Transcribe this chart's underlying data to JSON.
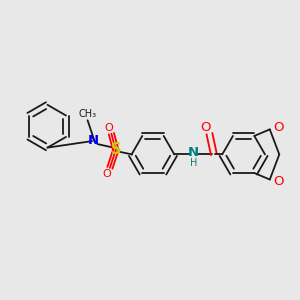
{
  "background_color": "#e8e8e8",
  "bond_color": "#1a1a1a",
  "figsize": [
    3.0,
    3.0
  ],
  "dpi": 100,
  "colors": {
    "N": "#0000ee",
    "S": "#cccc00",
    "O": "#ff0000",
    "NH": "#008080",
    "C": "#1a1a1a"
  }
}
